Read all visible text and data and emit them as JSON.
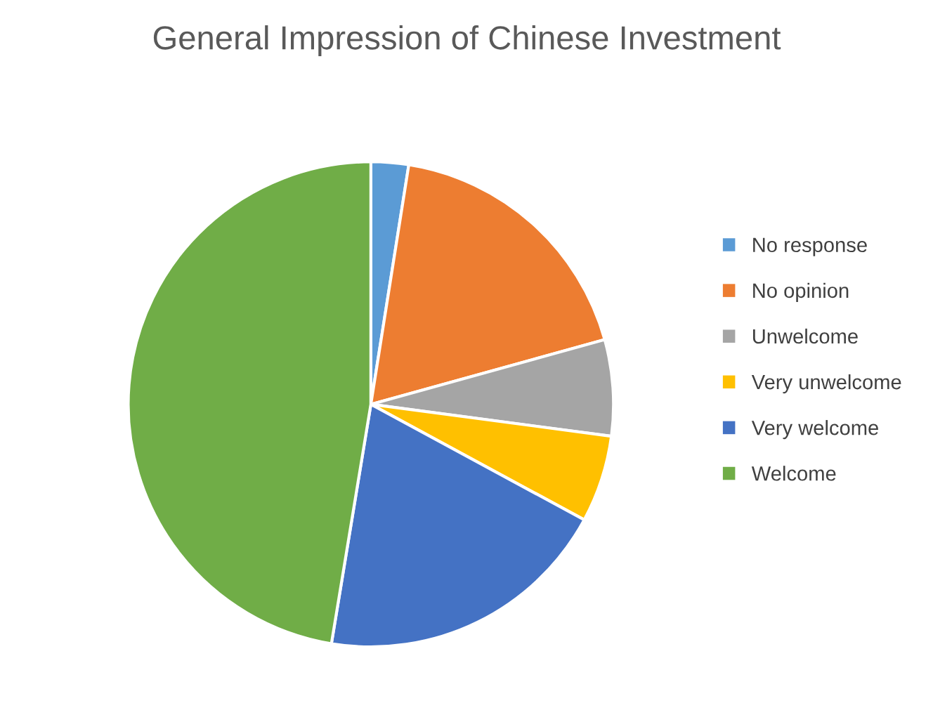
{
  "chart_data": {
    "type": "pie",
    "title": "General Impression of Chinese Investment",
    "categories": [
      "No response",
      "No opinion",
      "Unwelcome",
      "Very unwelcome",
      "Very welcome",
      "Welcome"
    ],
    "values": [
      2.5,
      18.2,
      6.4,
      5.8,
      19.7,
      47.4
    ],
    "colors": [
      "#5b9bd5",
      "#ed7d31",
      "#a5a5a5",
      "#ffc000",
      "#4472c4",
      "#70ad47"
    ],
    "legend": "right"
  }
}
